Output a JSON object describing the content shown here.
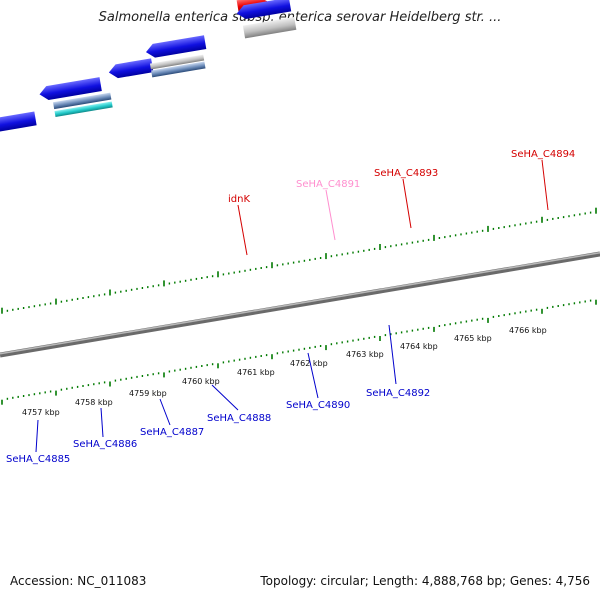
{
  "title": "Salmonella enterica subsp. enterica serovar Heidelberg str. ...",
  "footer": {
    "accession": "Accession: NC_011083",
    "topology": "Topology: circular; Length: 4,888,768 bp; Genes: 4,756"
  },
  "colors": {
    "backbone": "#8a8a8a",
    "tick": "#007a00",
    "forward_label": "#d40000",
    "reverse_label": "#0000cc",
    "pseudo_label": "#ff8fcf"
  },
  "ruler": [
    "4757 kbp",
    "4758 kbp",
    "4759 kbp",
    "4760 kbp",
    "4761 kbp",
    "4762 kbp",
    "4763 kbp",
    "4764 kbp",
    "4765 kbp",
    "4766 kbp"
  ],
  "gene_labels": {
    "forward": [
      "idnK",
      "SeHA_C4891",
      "SeHA_C4893",
      "SeHA_C4894"
    ],
    "reverse": [
      "SeHA_C4885",
      "SeHA_C4886",
      "SeHA_C4887",
      "SeHA_C4888",
      "SeHA_C4890",
      "SeHA_C4892"
    ]
  }
}
